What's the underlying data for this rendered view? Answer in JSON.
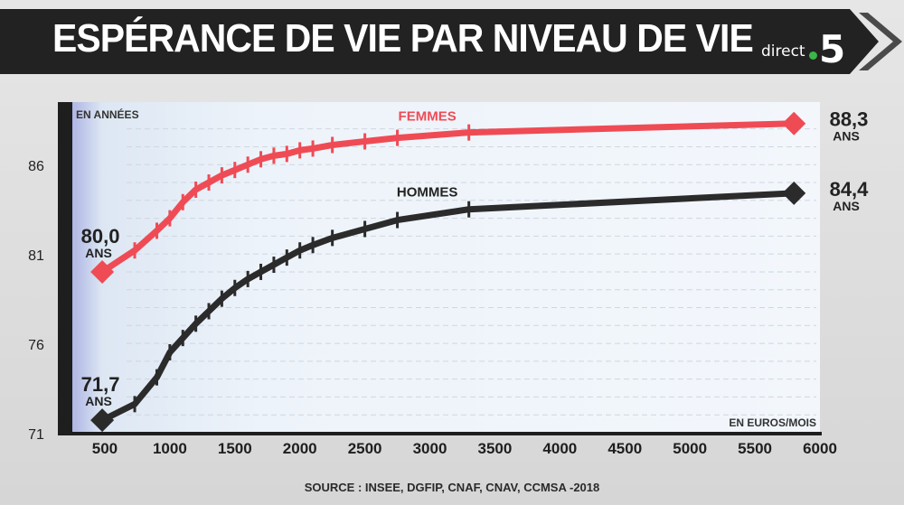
{
  "header": {
    "title": "ESPÉRANCE DE VIE PAR NIVEAU DE VIE",
    "brand_text": "direct",
    "brand_number": "5",
    "brand_color": "#3bb54a"
  },
  "footer": {
    "source": "SOURCE : INSEE, DGFIP, CNAF, CNAV, CCMSA -2018"
  },
  "chart_data": {
    "type": "line",
    "title": "ESPÉRANCE DE VIE PAR NIVEAU DE VIE",
    "ylabel": "EN ANNÉES",
    "xlabel": "EN EUROS/MOIS",
    "xlim": [
      250,
      6000
    ],
    "ylim": [
      71,
      89.5
    ],
    "x_ticks": [
      500,
      1000,
      1500,
      2000,
      2500,
      3000,
      3500,
      4000,
      4500,
      5000,
      5500,
      6000
    ],
    "y_ticks": [
      71,
      76,
      81,
      86
    ],
    "grid": true,
    "legend": "inline labels",
    "series": [
      {
        "name": "FEMMES",
        "color": "#ef4b55",
        "x": [
          480,
          730,
          900,
          1000,
          1100,
          1200,
          1300,
          1400,
          1500,
          1600,
          1700,
          1800,
          1900,
          2000,
          2100,
          2250,
          2500,
          2750,
          3300,
          5800
        ],
        "y": [
          80.0,
          81.2,
          82.3,
          83.0,
          83.9,
          84.6,
          85.0,
          85.4,
          85.7,
          86.0,
          86.3,
          86.5,
          86.6,
          86.8,
          86.9,
          87.1,
          87.3,
          87.5,
          87.8,
          88.3
        ],
        "start_label": {
          "value": "80,0",
          "unit": "ANS"
        },
        "end_label": {
          "value": "88,3",
          "unit": "ANS"
        }
      },
      {
        "name": "HOMMES",
        "color": "#2b2b2b",
        "x": [
          480,
          730,
          900,
          1000,
          1100,
          1200,
          1300,
          1400,
          1500,
          1600,
          1700,
          1800,
          1900,
          2000,
          2100,
          2250,
          2500,
          2750,
          3300,
          5800
        ],
        "y": [
          71.7,
          72.6,
          74.1,
          75.5,
          76.3,
          77.1,
          77.8,
          78.5,
          79.1,
          79.6,
          80.0,
          80.4,
          80.8,
          81.2,
          81.5,
          81.9,
          82.4,
          82.9,
          83.5,
          84.4
        ],
        "start_label": {
          "value": "71,7",
          "unit": "ANS"
        },
        "end_label": {
          "value": "84,4",
          "unit": "ANS"
        }
      }
    ]
  }
}
